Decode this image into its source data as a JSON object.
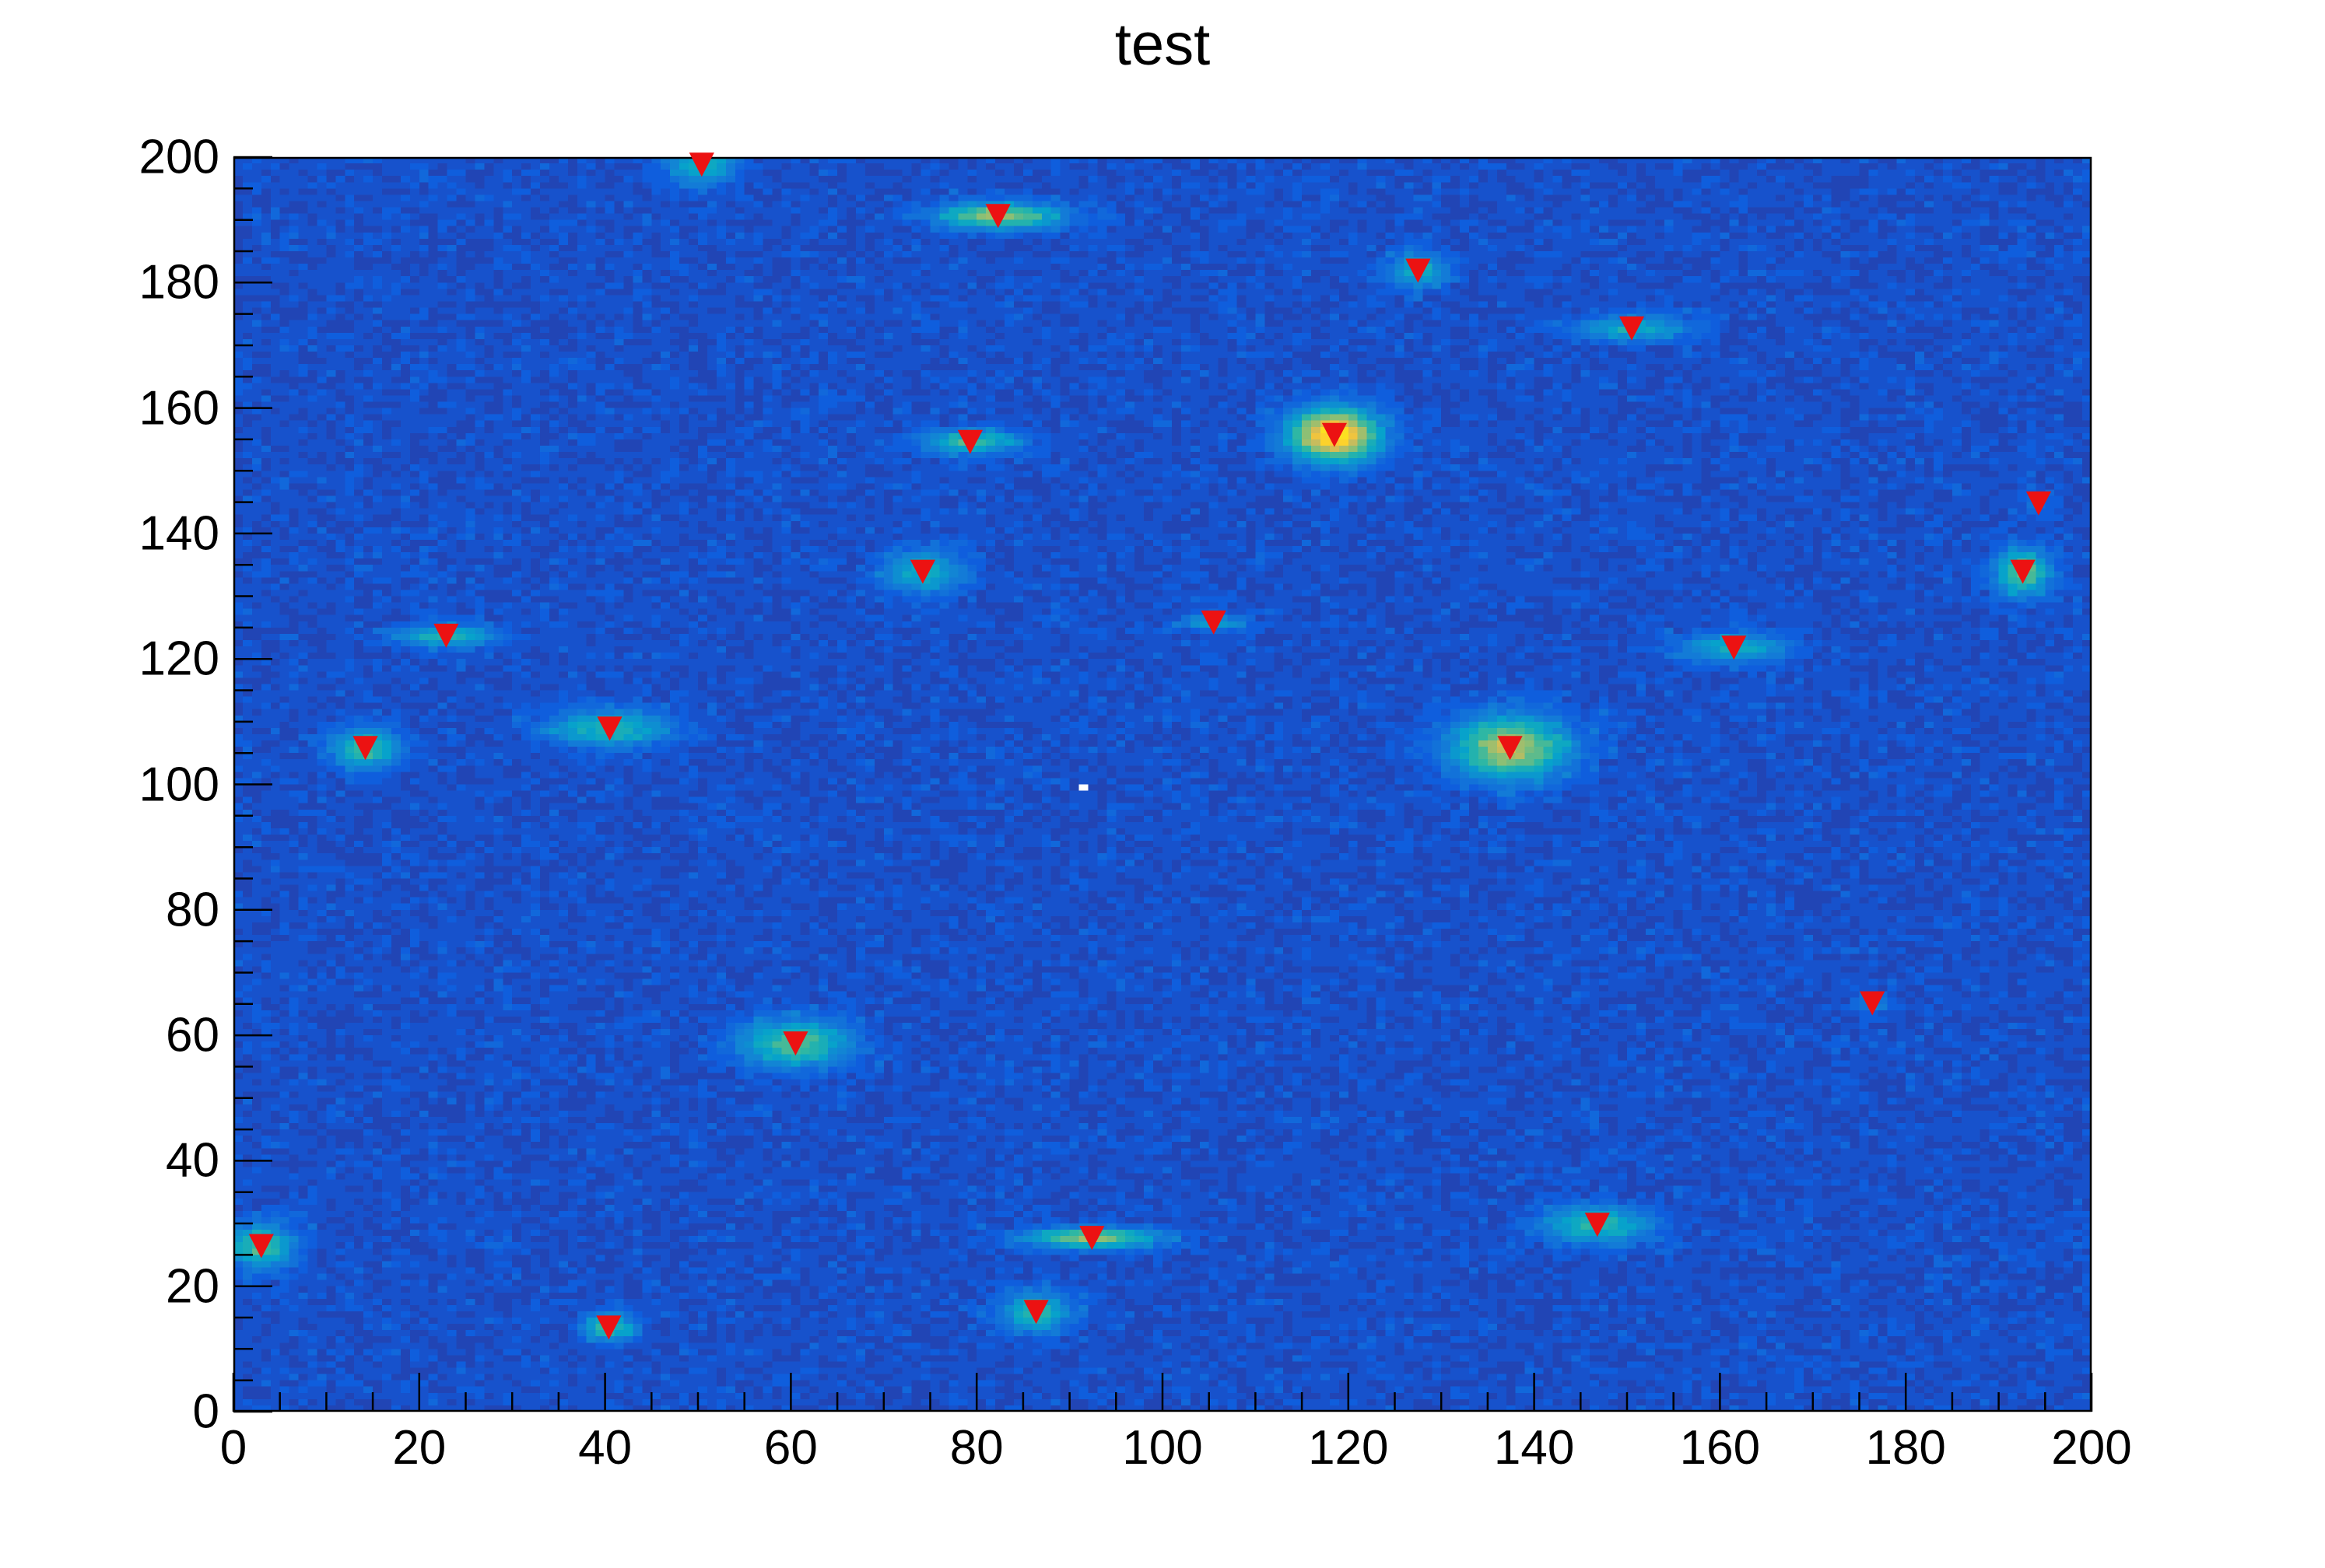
{
  "chart_data": {
    "type": "heatmap",
    "title": "test",
    "x_axis": {
      "min": 0,
      "max": 200,
      "major_step": 20,
      "minor_step": 5,
      "tick_labels": [
        "0",
        "20",
        "40",
        "60",
        "80",
        "100",
        "120",
        "140",
        "160",
        "180",
        "200"
      ]
    },
    "y_axis": {
      "min": 0,
      "max": 200,
      "major_step": 20,
      "minor_step": 5,
      "tick_labels": [
        "0",
        "20",
        "40",
        "60",
        "80",
        "100",
        "120",
        "140",
        "160",
        "180",
        "200"
      ]
    },
    "bins": {
      "nx": 200,
      "ny": 200
    },
    "palette": {
      "name": "root-kbird",
      "stops": [
        "#352a87",
        "#0f5cdd",
        "#1480d6",
        "#06a4ca",
        "#2eb7a4",
        "#87bf77",
        "#d1bb59",
        "#fec832",
        "#f9fb0e"
      ]
    },
    "background_color": "#ffffff",
    "frame_color": "#000000",
    "empty_bin_color": "#ffffff",
    "noise": {
      "seed": 20240917,
      "levels": [
        2,
        3,
        4,
        5
      ],
      "probabilities": [
        0.32,
        0.52,
        0.13,
        0.03
      ],
      "zmax": 30
    },
    "empty_bins": [
      {
        "x": 91,
        "y": 99
      }
    ],
    "blobs": [
      {
        "x": 50.4,
        "y": 198.8,
        "sx": 2.5,
        "sy": 2.2,
        "amp": 10
      },
      {
        "x": 82.3,
        "y": 190.6,
        "sx": 4.5,
        "sy": 1.4,
        "amp": 17
      },
      {
        "x": 127.5,
        "y": 181.9,
        "sx": 2.2,
        "sy": 1.8,
        "amp": 10
      },
      {
        "x": 150.5,
        "y": 172.7,
        "sx": 4.5,
        "sy": 1.4,
        "amp": 9
      },
      {
        "x": 118.5,
        "y": 155.7,
        "sx": 3.2,
        "sy": 2.8,
        "amp": 27
      },
      {
        "x": 79.3,
        "y": 154.6,
        "sx": 3.5,
        "sy": 1.3,
        "amp": 13
      },
      {
        "x": 194.3,
        "y": 144.8,
        "sx": 1.5,
        "sy": 1.2,
        "amp": 3
      },
      {
        "x": 74.2,
        "y": 133.9,
        "sx": 2.8,
        "sy": 2.4,
        "amp": 10
      },
      {
        "x": 192.6,
        "y": 133.9,
        "sx": 2.0,
        "sy": 2.6,
        "amp": 15
      },
      {
        "x": 22.9,
        "y": 123.7,
        "sx": 3.5,
        "sy": 1.2,
        "amp": 12
      },
      {
        "x": 105.5,
        "y": 125.8,
        "sx": 2.5,
        "sy": 0.9,
        "amp": 8
      },
      {
        "x": 161.5,
        "y": 121.8,
        "sx": 4.0,
        "sy": 1.6,
        "amp": 10
      },
      {
        "x": 14.2,
        "y": 105.8,
        "sx": 2.4,
        "sy": 2.2,
        "amp": 13
      },
      {
        "x": 40.5,
        "y": 108.9,
        "sx": 4.5,
        "sy": 2.0,
        "amp": 11
      },
      {
        "x": 137.4,
        "y": 105.8,
        "sx": 4.2,
        "sy": 3.4,
        "amp": 19
      },
      {
        "x": 60.5,
        "y": 58.7,
        "sx": 4.0,
        "sy": 2.6,
        "amp": 14
      },
      {
        "x": 176.4,
        "y": 65.1,
        "sx": 1.5,
        "sy": 1.2,
        "amp": 5
      },
      {
        "x": 146.8,
        "y": 29.8,
        "sx": 4.0,
        "sy": 2.0,
        "amp": 12
      },
      {
        "x": 92.4,
        "y": 27.7,
        "sx": 4.8,
        "sy": 1.1,
        "amp": 17
      },
      {
        "x": 86.4,
        "y": 15.9,
        "sx": 2.5,
        "sy": 2.2,
        "amp": 12
      },
      {
        "x": 40.4,
        "y": 13.4,
        "sx": 1.8,
        "sy": 1.5,
        "amp": 13
      },
      {
        "x": 3.0,
        "y": 26.4,
        "sx": 2.4,
        "sy": 2.4,
        "amp": 13
      }
    ],
    "marker": {
      "shape": "triangle-down",
      "color": "#ec1212",
      "size": 31
    },
    "markers": [
      {
        "x": 50.4,
        "y": 198.8
      },
      {
        "x": 82.3,
        "y": 190.6
      },
      {
        "x": 127.5,
        "y": 181.9
      },
      {
        "x": 150.5,
        "y": 172.7
      },
      {
        "x": 118.5,
        "y": 155.7
      },
      {
        "x": 79.3,
        "y": 154.6
      },
      {
        "x": 194.3,
        "y": 144.8
      },
      {
        "x": 74.2,
        "y": 133.9
      },
      {
        "x": 192.6,
        "y": 133.9
      },
      {
        "x": 22.9,
        "y": 123.7
      },
      {
        "x": 105.5,
        "y": 125.8
      },
      {
        "x": 161.5,
        "y": 121.8
      },
      {
        "x": 14.2,
        "y": 105.8
      },
      {
        "x": 40.5,
        "y": 108.9
      },
      {
        "x": 137.4,
        "y": 105.8
      },
      {
        "x": 60.5,
        "y": 58.7
      },
      {
        "x": 176.4,
        "y": 65.1
      },
      {
        "x": 146.8,
        "y": 29.8
      },
      {
        "x": 92.4,
        "y": 27.7
      },
      {
        "x": 86.4,
        "y": 15.9
      },
      {
        "x": 40.4,
        "y": 13.4
      },
      {
        "x": 3.0,
        "y": 26.4
      }
    ]
  }
}
